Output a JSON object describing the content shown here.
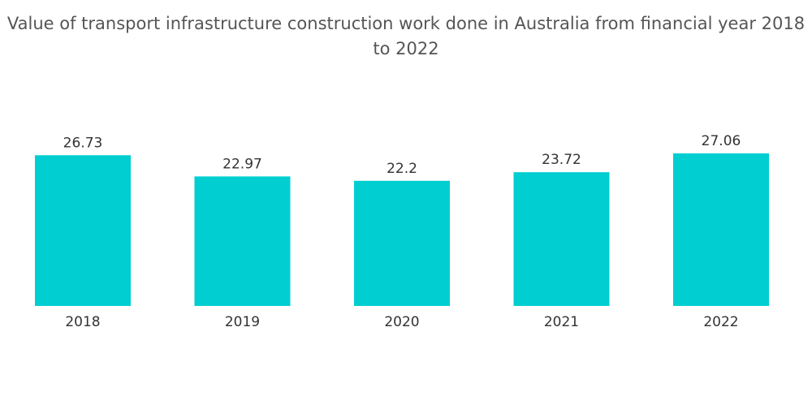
{
  "chart_data": {
    "type": "bar",
    "title": "Value of transport infrastructure construction work done in Australia from financial year 2018 to 2022",
    "categories": [
      "2018",
      "2019",
      "2020",
      "2021",
      "2022"
    ],
    "values": [
      26.73,
      22.97,
      22.2,
      23.72,
      27.06
    ],
    "value_labels": [
      "26.73",
      "22.97",
      "22.2",
      "23.72",
      "27.06"
    ],
    "xlabel": "",
    "ylabel": "",
    "ylim": [
      0,
      27.06
    ],
    "grid": false,
    "legend": "none",
    "bar_color": "#00CED1"
  }
}
